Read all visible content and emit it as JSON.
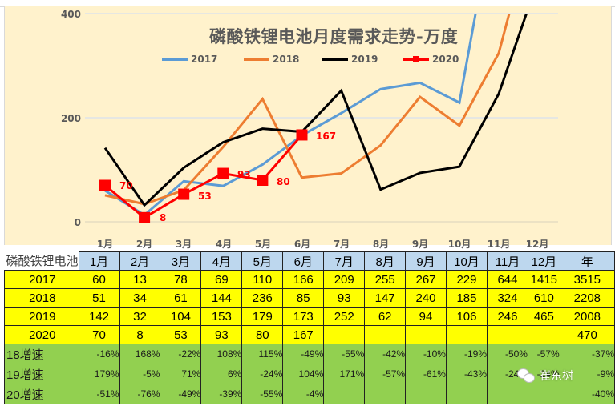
{
  "chart_data": {
    "type": "line",
    "title": "磷酸铁锂电池月度需求走势-万度",
    "xlabel": "",
    "ylabel": "",
    "categories": [
      "1月",
      "2月",
      "3月",
      "4月",
      "5月",
      "6月",
      "7月",
      "8月",
      "9月",
      "10月",
      "11月",
      "12月"
    ],
    "ylim": [
      0,
      400
    ],
    "yticks": [
      0,
      200,
      400
    ],
    "grid": true,
    "legend_position": "top",
    "series": [
      {
        "name": "2017",
        "color": "#5b9bd5",
        "values": [
          60,
          13,
          78,
          69,
          110,
          166,
          209,
          255,
          267,
          229,
          644,
          1415
        ]
      },
      {
        "name": "2018",
        "color": "#ed7d31",
        "values": [
          51,
          34,
          61,
          144,
          236,
          85,
          93,
          147,
          240,
          185,
          324,
          610
        ]
      },
      {
        "name": "2019",
        "color": "#000000",
        "values": [
          142,
          32,
          104,
          153,
          179,
          173,
          252,
          62,
          94,
          106,
          246,
          465
        ]
      },
      {
        "name": "2020",
        "color": "#ff0000",
        "marker": "square",
        "values": [
          70,
          8,
          53,
          93,
          80,
          167
        ],
        "data_labels": [
          "70",
          "8",
          "53",
          "93",
          "80",
          "167"
        ]
      }
    ]
  },
  "chart": {
    "title": "磷酸铁锂电池月度需求走势-万度",
    "y_ticks": [
      "400",
      "200",
      "0"
    ],
    "x_ticks": [
      "1月",
      "2月",
      "3月",
      "4月",
      "5月",
      "6月",
      "7月",
      "8月",
      "9月",
      "10月",
      "11月",
      "12月"
    ],
    "legend": [
      "2017",
      "2018",
      "2019",
      "2020"
    ],
    "data_labels": [
      "70",
      "8",
      "53",
      "93",
      "80",
      "167"
    ]
  },
  "table": {
    "corner_label": "磷酸铁锂电池",
    "headers": [
      "1月",
      "2月",
      "3月",
      "4月",
      "5月",
      "6月",
      "7月",
      "8月",
      "9月",
      "10月",
      "11月",
      "12月",
      "年"
    ],
    "rows": [
      {
        "label": "2017",
        "type": "val",
        "cells": [
          "60",
          "13",
          "78",
          "69",
          "110",
          "166",
          "209",
          "255",
          "267",
          "229",
          "644",
          "1415",
          "3515"
        ]
      },
      {
        "label": "2018",
        "type": "val",
        "cells": [
          "51",
          "34",
          "61",
          "144",
          "236",
          "85",
          "93",
          "147",
          "240",
          "185",
          "324",
          "610",
          "2208"
        ]
      },
      {
        "label": "2019",
        "type": "val",
        "cells": [
          "142",
          "32",
          "104",
          "153",
          "179",
          "173",
          "252",
          "62",
          "94",
          "106",
          "246",
          "465",
          "2008"
        ]
      },
      {
        "label": "2020",
        "type": "val",
        "cells": [
          "70",
          "8",
          "53",
          "93",
          "80",
          "167",
          "",
          "",
          "",
          "",
          "",
          "",
          "470"
        ]
      },
      {
        "label": "18增速",
        "type": "rate",
        "cells": [
          "-16%",
          "168%",
          "-22%",
          "108%",
          "115%",
          "-49%",
          "-55%",
          "-42%",
          "-10%",
          "-19%",
          "-50%",
          "-57%",
          "-37%"
        ]
      },
      {
        "label": "19增速",
        "type": "rate",
        "cells": [
          "179%",
          "-5%",
          "71%",
          "6%",
          "-24%",
          "104%",
          "171%",
          "-57%",
          "-61%",
          "-43%",
          "-24%",
          "-24%",
          "-9%"
        ]
      },
      {
        "label": "20增速",
        "type": "rate",
        "cells": [
          "-51%",
          "-76%",
          "-49%",
          "-39%",
          "-55%",
          "-4%",
          "",
          "",
          "",
          "",
          "",
          "",
          "-40%"
        ]
      }
    ]
  },
  "watermark": {
    "text": "崔东树",
    "icon": "wechat-icon"
  }
}
